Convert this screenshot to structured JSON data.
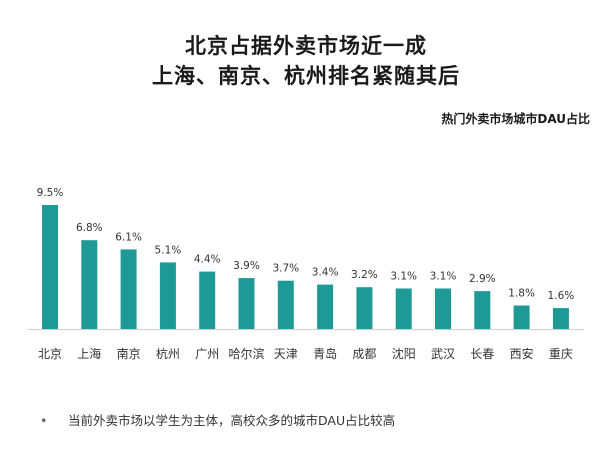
{
  "header": {
    "title_line1": "北京占据外卖市场近一成",
    "title_line2": "上海、南京、杭州排名紧随其后",
    "subtitle": "热门外卖市场城市DAU占比"
  },
  "footnote": {
    "bullet": "•",
    "text": "当前外卖市场以学生为主体，高校众多的城市DAU占比较高"
  },
  "colors": {
    "bar": "#1e9a96",
    "axis": "#d0d0d0"
  },
  "chart_data": {
    "type": "bar",
    "title": "热门外卖市场城市DAU占比",
    "categories": [
      "北京",
      "上海",
      "南京",
      "杭州",
      "广州",
      "哈尔滨",
      "天津",
      "青岛",
      "成都",
      "沈阳",
      "武汉",
      "长春",
      "西安",
      "重庆"
    ],
    "values": [
      9.5,
      6.8,
      6.1,
      5.1,
      4.4,
      3.9,
      3.7,
      3.4,
      3.2,
      3.1,
      3.1,
      2.9,
      1.8,
      1.6
    ],
    "data_labels": [
      "9.5%",
      "6.8%",
      "6.1%",
      "5.1%",
      "4.4%",
      "3.9%",
      "3.7%",
      "3.4%",
      "3.2%",
      "3.1%",
      "3.1%",
      "2.9%",
      "1.8%",
      "1.6%"
    ],
    "ylim": [
      0,
      10
    ],
    "grid": false,
    "legend": false,
    "y_axis_visible": false
  }
}
